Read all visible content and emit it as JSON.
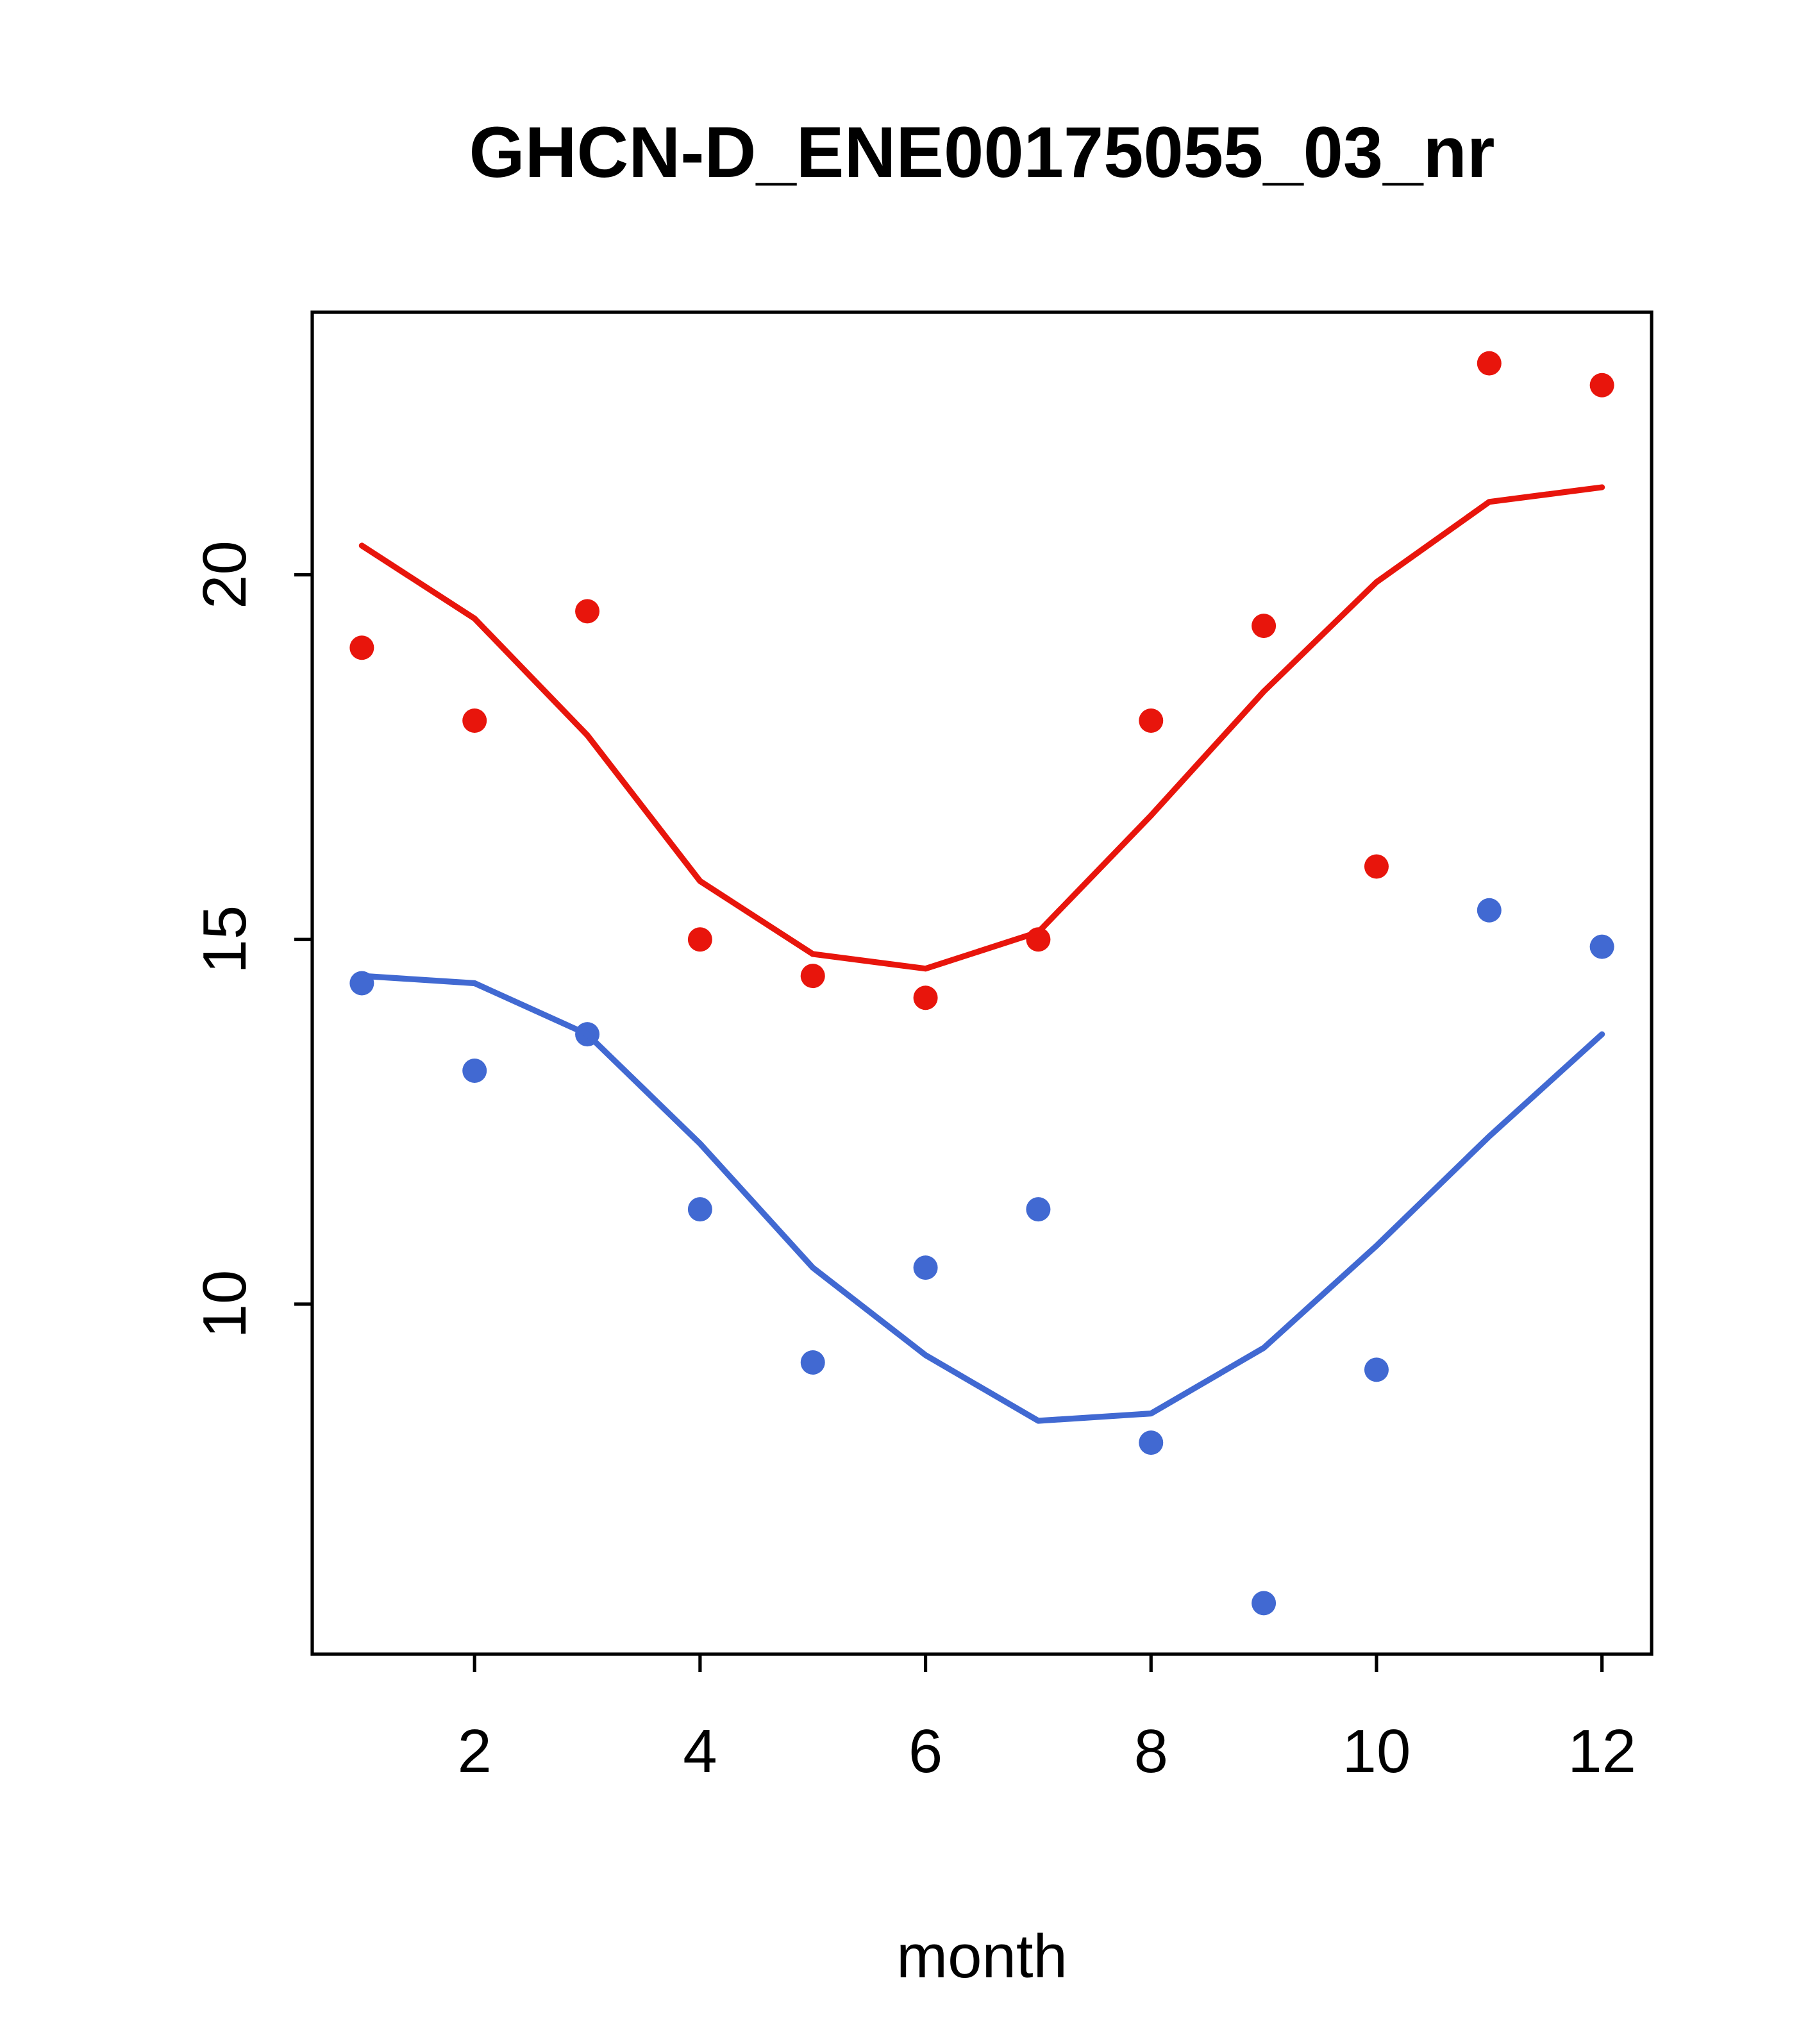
{
  "page": {
    "background": "#ffffff"
  },
  "chart_data": {
    "type": "scatter",
    "title": "GHCN-D_ENE00175055_03_nr",
    "xlabel": "month",
    "ylabel": "",
    "x": [
      1,
      2,
      3,
      4,
      5,
      6,
      7,
      8,
      9,
      10,
      11,
      12
    ],
    "xlim": [
      0.56,
      12.44
    ],
    "ylim": [
      5.2,
      23.6
    ],
    "x_ticks": [
      2,
      4,
      6,
      8,
      10,
      12
    ],
    "y_ticks": [
      10,
      15,
      20
    ],
    "grid": false,
    "legend": "none",
    "colors": {
      "red": "#e8150c",
      "blue": "#4169d2",
      "axis": "#000000",
      "background": "#ffffff"
    },
    "series": [
      {
        "name": "red-points",
        "kind": "points",
        "color": "#e8150c",
        "values": [
          19.0,
          18.0,
          19.5,
          15.0,
          14.5,
          14.2,
          15.0,
          18.0,
          19.3,
          16.0,
          22.9,
          22.6
        ]
      },
      {
        "name": "red-line",
        "kind": "line",
        "color": "#e8150c",
        "values": [
          20.4,
          19.4,
          17.8,
          15.8,
          14.8,
          14.6,
          15.1,
          16.7,
          18.4,
          19.9,
          21.0,
          21.2
        ]
      },
      {
        "name": "blue-points",
        "kind": "points",
        "color": "#4169d2",
        "values": [
          14.4,
          13.2,
          13.7,
          11.3,
          9.2,
          10.5,
          11.3,
          8.1,
          5.9,
          9.1,
          15.4,
          14.9
        ]
      },
      {
        "name": "blue-line",
        "kind": "line",
        "color": "#4169d2",
        "values": [
          14.5,
          14.4,
          13.7,
          12.2,
          10.5,
          9.3,
          8.4,
          8.5,
          9.4,
          10.8,
          12.3,
          13.7
        ]
      }
    ]
  }
}
